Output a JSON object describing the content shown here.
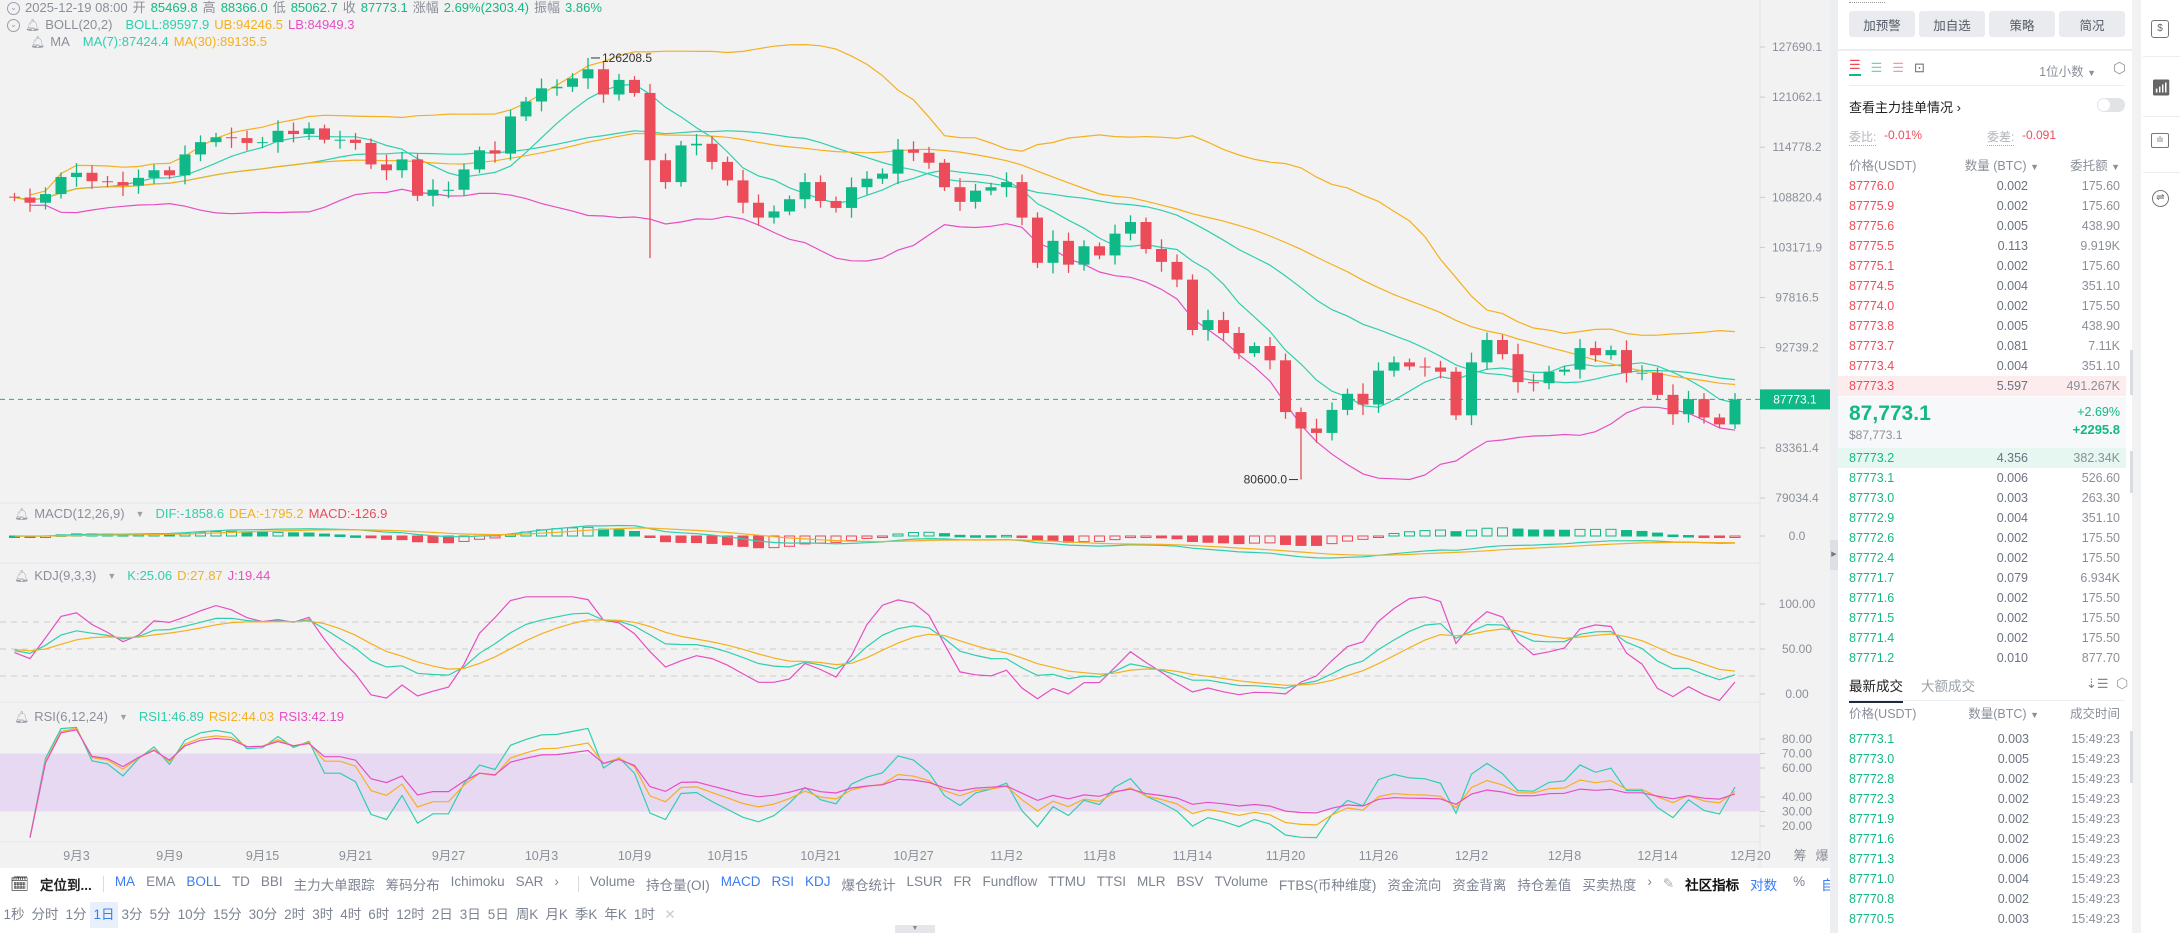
{
  "header": {
    "datetime": "2025-12-19 08:00",
    "open_label": "开",
    "open": "85469.8",
    "high_label": "高",
    "high": "88366.0",
    "low_label": "低",
    "low": "85062.7",
    "close_label": "收",
    "close": "87773.1",
    "change_label": "涨幅",
    "change": "2.69%(2303.4)",
    "amplitude_label": "振幅",
    "amplitude": "3.86%",
    "boll_name": "BOLL(20,2)",
    "boll": "BOLL:89597.9",
    "ub": "UB:94246.5",
    "lb": "LB:84949.3",
    "ma_name": "MA",
    "ma7": "MA(7):87424.4",
    "ma30": "MA(30):89135.5"
  },
  "macd": {
    "name": "MACD(12,26,9)",
    "dif": "DIF:-1858.6",
    "dea": "DEA:-1795.2",
    "macd": "MACD:-126.9",
    "ticks": [
      "0.0"
    ]
  },
  "kdj": {
    "name": "KDJ(9,3,3)",
    "k": "K:25.06",
    "d": "D:27.87",
    "j": "J:19.44",
    "ticks": [
      "100.00",
      "50.00",
      "0.00"
    ]
  },
  "rsi": {
    "name": "RSI(6,12,24)",
    "rsi1": "RSI1:46.89",
    "rsi2": "RSI2:44.03",
    "rsi3": "RSI3:42.19",
    "ticks": [
      "80.00",
      "70.00",
      "60.00",
      "40.00",
      "30.00",
      "20.00"
    ]
  },
  "price_axis": {
    "ticks": [
      "127690.1",
      "121062.1",
      "114778.2",
      "108820.4",
      "103171.9",
      "97816.5",
      "92739.2",
      "83361.4",
      "79034.4"
    ],
    "current": "87773.1"
  },
  "annotations": {
    "high": "126208.5",
    "low": "80600.0"
  },
  "x_axis": {
    "labels": [
      {
        "text": "9月3",
        "day": 4
      },
      {
        "text": "9月9",
        "day": 10
      },
      {
        "text": "9月15",
        "day": 16
      },
      {
        "text": "9月21",
        "day": 22
      },
      {
        "text": "9月27",
        "day": 28
      },
      {
        "text": "10月3",
        "day": 34
      },
      {
        "text": "10月9",
        "day": 40
      },
      {
        "text": "10月15",
        "day": 46
      },
      {
        "text": "10月21",
        "day": 52
      },
      {
        "text": "10月27",
        "day": 58
      },
      {
        "text": "11月2",
        "day": 64
      },
      {
        "text": "11月8",
        "day": 70
      },
      {
        "text": "11月14",
        "day": 76
      },
      {
        "text": "11月20",
        "day": 82
      },
      {
        "text": "11月26",
        "day": 88
      },
      {
        "text": "12月2",
        "day": 94
      },
      {
        "text": "12月8",
        "day": 100
      },
      {
        "text": "12月14",
        "day": 106
      },
      {
        "text": "12月20",
        "day": 112
      }
    ],
    "extra": [
      "筹",
      "爆"
    ]
  },
  "chart_data": {
    "type": "candlestick",
    "first_open": 108900,
    "closes": [
      108800,
      108200,
      109200,
      111200,
      111700,
      110700,
      110600,
      110200,
      111100,
      112000,
      111400,
      113900,
      115400,
      116000,
      115900,
      115300,
      115400,
      116800,
      116400,
      117100,
      115700,
      115700,
      115300,
      112700,
      112000,
      113300,
      109000,
      109700,
      109700,
      112100,
      114400,
      114000,
      118600,
      120500,
      122200,
      122400,
      123500,
      124700,
      121400,
      123300,
      121600,
      113200,
      110600,
      115000,
      115200,
      113000,
      110800,
      108200,
      106500,
      107200,
      108600,
      110600,
      108400,
      107600,
      110000,
      111000,
      111600,
      114500,
      114100,
      112900,
      110000,
      108300,
      109600,
      110000,
      110600,
      106500,
      101500,
      103900,
      101300,
      103300,
      102300,
      104700,
      106000,
      103000,
      101600,
      99700,
      94500,
      95500,
      94200,
      92200,
      92900,
      91500,
      86600,
      85100,
      84700,
      86800,
      88300,
      87300,
      90500,
      91300,
      90900,
      90800,
      90400,
      86300,
      91300,
      93500,
      92100,
      89400,
      89300,
      90400,
      90600,
      92700,
      92000,
      92500,
      90300,
      90300,
      88200,
      86400,
      87800,
      86100,
      85469.8,
      87773.1
    ],
    "wick_pct": 0.8,
    "overrides": {
      "37": {
        "h": 126208.5
      },
      "41": {
        "l": 102000
      },
      "83": {
        "l": 80600
      },
      "111": {
        "h": 88366.0,
        "l": 85062.7
      }
    },
    "price_ticks": [
      127690.1,
      79034.4
    ],
    "current_price": 87773.1,
    "colors": {
      "up": "#0fb887",
      "down": "#ec4b59",
      "mid": "#2fcfae",
      "upper": "#f5b01e",
      "lower": "#e64fc3",
      "band": "#e8d9f3"
    }
  },
  "toolbar": {
    "locate": "定位到...",
    "indicators_main": [
      {
        "label": "MA",
        "active": true
      },
      {
        "label": "EMA"
      },
      {
        "label": "BOLL",
        "active": true
      },
      {
        "label": "TD"
      },
      {
        "label": "BBI"
      },
      {
        "label": "主力大单跟踪"
      },
      {
        "label": "筹码分布"
      },
      {
        "label": "Ichimoku"
      },
      {
        "label": "SAR"
      },
      {
        "label": "›"
      }
    ],
    "indicators_sub": [
      {
        "label": "Volume"
      },
      {
        "label": "持仓量(OI)"
      },
      {
        "label": "MACD",
        "active": true
      },
      {
        "label": "RSI",
        "active": true
      },
      {
        "label": "KDJ",
        "active": true
      },
      {
        "label": "爆仓统计"
      },
      {
        "label": "LSUR"
      },
      {
        "label": "FR"
      },
      {
        "label": "Fundflow"
      },
      {
        "label": "TTMU"
      },
      {
        "label": "TTSI"
      },
      {
        "label": "MLR"
      },
      {
        "label": "BSV"
      },
      {
        "label": "TVolume"
      },
      {
        "label": "FTBS(币种维度)"
      },
      {
        "label": "资金流向"
      },
      {
        "label": "资金背离"
      },
      {
        "label": "持仓差值"
      },
      {
        "label": "买卖热度"
      },
      {
        "label": "›"
      }
    ],
    "community": "社区指标",
    "log": "对数",
    "percent": "%",
    "auto": "自动",
    "intervals": [
      "1秒",
      "分时",
      "1分",
      "1日",
      "3分",
      "5分",
      "10分",
      "15分",
      "30分",
      "2时",
      "3时",
      "4时",
      "6时",
      "12时",
      "2日",
      "3日",
      "5日",
      "周K",
      "月K",
      "季K",
      "年K",
      "1时"
    ],
    "selected_interval": "1日",
    "close": "✕"
  },
  "panel": {
    "buttons": [
      "加预警",
      "加自选",
      "策略",
      "简况"
    ],
    "decimals": "1位小数",
    "main_orders": "查看主力挂单情况",
    "ratio_label": "委比:",
    "ratio": "-0.01%",
    "diff_label": "委差:",
    "diff": "-0.091",
    "book_headers": [
      "价格(USDT)",
      "数量 (BTC)",
      "委托额"
    ],
    "asks": [
      [
        "87776.0",
        "0.002",
        "175.60"
      ],
      [
        "87775.9",
        "0.002",
        "175.60"
      ],
      [
        "87775.6",
        "0.005",
        "438.90"
      ],
      [
        "87775.5",
        "0.113",
        "9.919K"
      ],
      [
        "87775.1",
        "0.002",
        "175.60"
      ],
      [
        "87774.5",
        "0.004",
        "351.10"
      ],
      [
        "87774.0",
        "0.002",
        "175.50"
      ],
      [
        "87773.8",
        "0.005",
        "438.90"
      ],
      [
        "87773.7",
        "0.081",
        "7.11K"
      ],
      [
        "87773.4",
        "0.004",
        "351.10"
      ],
      [
        "87773.3",
        "5.597",
        "491.267K"
      ]
    ],
    "last_price": "87,773.1",
    "last_usd": "$87,773.1",
    "change_pct": "+2.69%",
    "change_abs": "+2295.8",
    "bids": [
      [
        "87773.2",
        "4.356",
        "382.34K"
      ],
      [
        "87773.1",
        "0.006",
        "526.60"
      ],
      [
        "87773.0",
        "0.003",
        "263.30"
      ],
      [
        "87772.9",
        "0.004",
        "351.10"
      ],
      [
        "87772.6",
        "0.002",
        "175.50"
      ],
      [
        "87772.4",
        "0.002",
        "175.50"
      ],
      [
        "87771.7",
        "0.079",
        "6.934K"
      ],
      [
        "87771.6",
        "0.002",
        "175.50"
      ],
      [
        "87771.5",
        "0.002",
        "175.50"
      ],
      [
        "87771.4",
        "0.002",
        "175.50"
      ],
      [
        "87771.2",
        "0.010",
        "877.70"
      ]
    ],
    "trade_tabs": [
      "最新成交",
      "大额成交"
    ],
    "trade_headers": [
      "价格(USDT)",
      "数量(BTC)",
      "成交时间"
    ],
    "trades": [
      [
        "87773.1",
        "0.003",
        "15:49:23"
      ],
      [
        "87773.0",
        "0.005",
        "15:49:23"
      ],
      [
        "87772.8",
        "0.002",
        "15:49:23"
      ],
      [
        "87772.3",
        "0.002",
        "15:49:23"
      ],
      [
        "87771.9",
        "0.002",
        "15:49:23"
      ],
      [
        "87771.6",
        "0.002",
        "15:49:23"
      ],
      [
        "87771.3",
        "0.006",
        "15:49:23"
      ],
      [
        "87771.0",
        "0.004",
        "15:49:23"
      ],
      [
        "87770.8",
        "0.002",
        "15:49:23"
      ],
      [
        "87770.5",
        "0.003",
        "15:49:23"
      ]
    ]
  },
  "side_icons": [
    "dollar-doc-icon",
    "trend-chart-icon",
    "monitor-chart-icon",
    "swap-icon"
  ]
}
